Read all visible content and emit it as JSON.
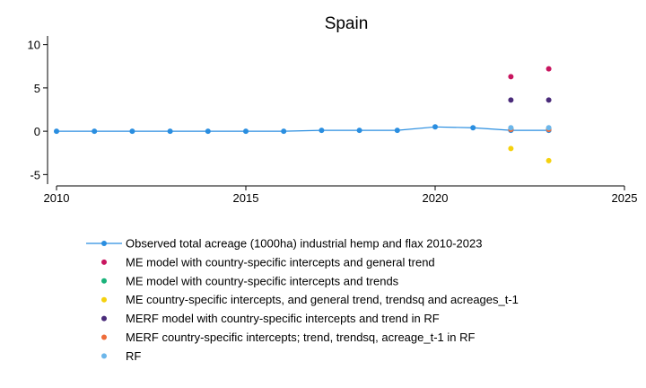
{
  "chart_data": {
    "type": "scatter",
    "title": "Spain",
    "xlabel": "",
    "ylabel": "",
    "xlim": [
      2010,
      2025
    ],
    "ylim": [
      -6,
      11
    ],
    "x_ticks": [
      2010,
      2015,
      2020,
      2025
    ],
    "y_ticks": [
      -5,
      0,
      5,
      10
    ],
    "grid": false,
    "legend_position": "bottom",
    "series": [
      {
        "name": "Observed total acreage (1000ha) industrial hemp and flax 2010-2023",
        "style": "line",
        "color": "#2a8ee0",
        "points": [
          [
            2010,
            0.0
          ],
          [
            2011,
            0.0
          ],
          [
            2012,
            0.0
          ],
          [
            2013,
            0.0
          ],
          [
            2014,
            0.0
          ],
          [
            2015,
            0.0
          ],
          [
            2016,
            0.0
          ],
          [
            2017,
            0.1
          ],
          [
            2018,
            0.1
          ],
          [
            2019,
            0.1
          ],
          [
            2020,
            0.5
          ],
          [
            2021,
            0.4
          ],
          [
            2022,
            0.1
          ],
          [
            2023,
            0.1
          ]
        ]
      },
      {
        "name": "ME model with country-specific intercepts and general trend",
        "style": "dot",
        "color": "#c8155f",
        "points": [
          [
            2022,
            6.3
          ],
          [
            2023,
            7.2
          ]
        ]
      },
      {
        "name": "ME model with country-specific intercepts and trends",
        "style": "dot",
        "color": "#19b27a",
        "points": [
          [
            2022,
            0.3
          ],
          [
            2023,
            0.3
          ]
        ]
      },
      {
        "name": "ME country-specific intercepts, and general trend, trendsq and acreages_t-1",
        "style": "dot",
        "color": "#f5d10e",
        "points": [
          [
            2022,
            -2.0
          ],
          [
            2023,
            -3.4
          ]
        ]
      },
      {
        "name": "MERF model with country-specific intercepts and trend in RF",
        "style": "dot",
        "color": "#4a2b7a",
        "points": [
          [
            2022,
            3.6
          ],
          [
            2023,
            3.6
          ]
        ]
      },
      {
        "name": "MERF country-specific intercepts; trend, trendsq, acreage_t-1 in RF",
        "style": "dot",
        "color": "#ee6c3a",
        "points": [
          [
            2022,
            0.2
          ],
          [
            2023,
            0.2
          ]
        ]
      },
      {
        "name": "RF",
        "style": "dot",
        "color": "#6cb6ea",
        "points": [
          [
            2022,
            0.4
          ],
          [
            2023,
            0.4
          ]
        ]
      }
    ]
  }
}
